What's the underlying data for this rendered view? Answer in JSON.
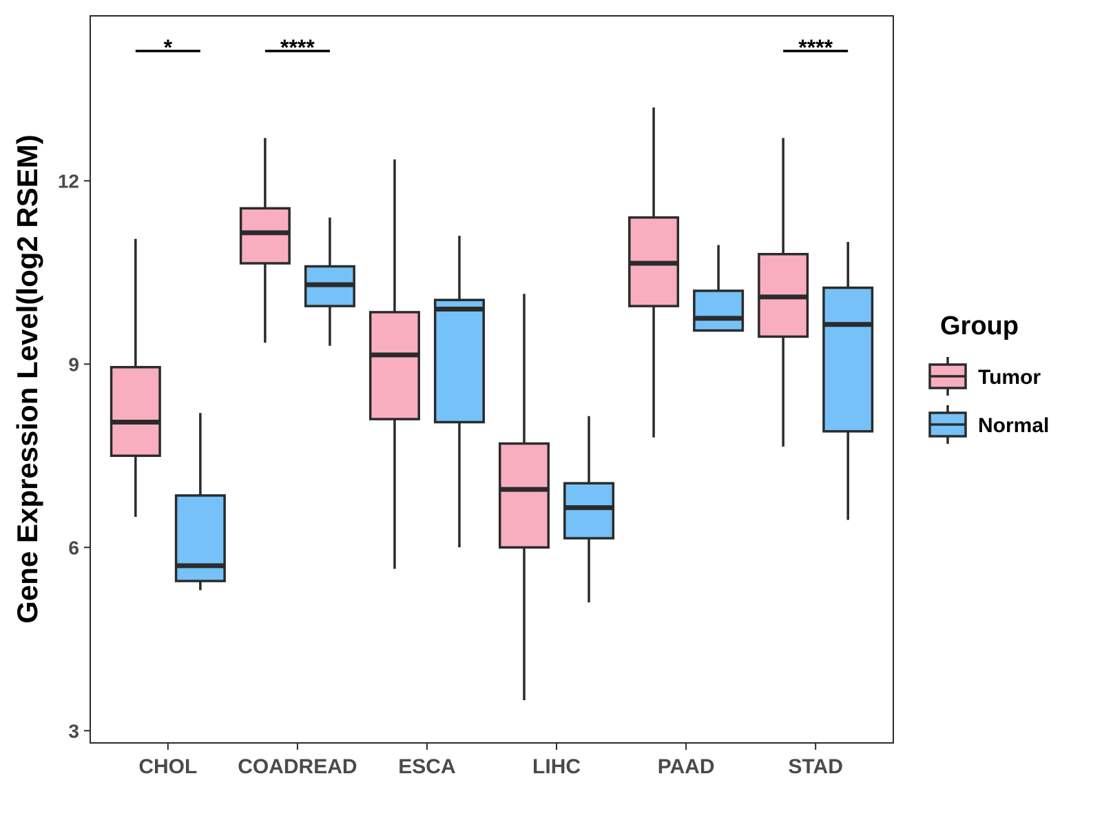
{
  "chart_data": {
    "type": "box",
    "title": "",
    "xlabel": "",
    "ylabel": "Gene Expression Level(log2 RSEM)",
    "ylim": [
      2.8,
      14.7
    ],
    "yticks": [
      3,
      6,
      9,
      12
    ],
    "categories": [
      "CHOL",
      "COADREAD",
      "ESCA",
      "LIHC",
      "PAAD",
      "STAD"
    ],
    "legend": {
      "title": "Group",
      "position": "right",
      "entries": [
        {
          "name": "Tumor",
          "color": "#F9AEC0"
        },
        {
          "name": "Normal",
          "color": "#75C1F8"
        }
      ]
    },
    "series": [
      {
        "name": "Tumor",
        "color": "#F9AEC0",
        "boxes": [
          {
            "min": 6.5,
            "q1": 7.5,
            "median": 8.05,
            "q3": 8.95,
            "max": 11.05
          },
          {
            "min": 9.35,
            "q1": 10.65,
            "median": 11.15,
            "q3": 11.55,
            "max": 12.7
          },
          {
            "min": 5.65,
            "q1": 8.1,
            "median": 9.15,
            "q3": 9.85,
            "max": 12.35
          },
          {
            "min": 3.5,
            "q1": 6.0,
            "median": 6.95,
            "q3": 7.7,
            "max": 10.15
          },
          {
            "min": 7.8,
            "q1": 9.95,
            "median": 10.65,
            "q3": 11.4,
            "max": 13.2
          },
          {
            "min": 7.65,
            "q1": 9.45,
            "median": 10.1,
            "q3": 10.8,
            "max": 12.7
          }
        ]
      },
      {
        "name": "Normal",
        "color": "#75C1F8",
        "boxes": [
          {
            "min": 5.3,
            "q1": 5.45,
            "median": 5.7,
            "q3": 6.85,
            "max": 8.2
          },
          {
            "min": 9.3,
            "q1": 9.95,
            "median": 10.3,
            "q3": 10.6,
            "max": 11.4
          },
          {
            "min": 6.0,
            "q1": 8.05,
            "median": 9.9,
            "q3": 10.05,
            "max": 11.1
          },
          {
            "min": 5.1,
            "q1": 6.15,
            "median": 6.65,
            "q3": 7.05,
            "max": 8.15
          },
          {
            "min": 9.55,
            "q1": 9.55,
            "median": 9.75,
            "q3": 10.2,
            "max": 10.95
          },
          {
            "min": 6.45,
            "q1": 7.9,
            "median": 9.65,
            "q3": 10.25,
            "max": 11.0
          }
        ]
      }
    ],
    "significance": [
      {
        "category": "CHOL",
        "label": "*"
      },
      {
        "category": "COADREAD",
        "label": "****"
      },
      {
        "category": "STAD",
        "label": "****"
      }
    ]
  }
}
